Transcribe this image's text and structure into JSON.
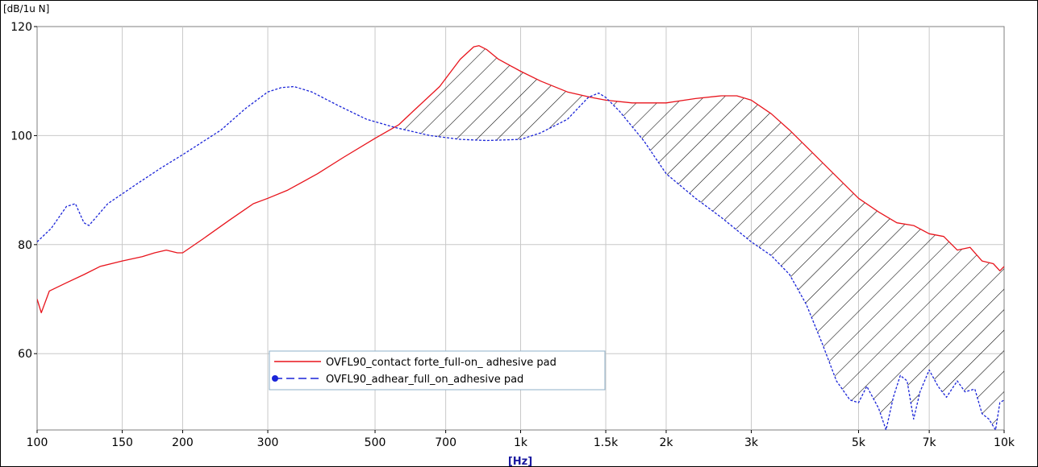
{
  "chart_data": {
    "type": "line",
    "title": "",
    "y_unit_label": "[dB/1u N]",
    "x_unit_label": "[Hz]",
    "x_scale": "log",
    "xlim": [
      100,
      10000
    ],
    "ylim": [
      46,
      120
    ],
    "grid": true,
    "legend_placement": "bottom-center",
    "x_ticks": [
      {
        "value": 100,
        "label": "100"
      },
      {
        "value": 150,
        "label": "150"
      },
      {
        "value": 200,
        "label": "200"
      },
      {
        "value": 300,
        "label": "300"
      },
      {
        "value": 500,
        "label": "500"
      },
      {
        "value": 700,
        "label": "700"
      },
      {
        "value": 1000,
        "label": "1k"
      },
      {
        "value": 1500,
        "label": "1.5k"
      },
      {
        "value": 2000,
        "label": "2k"
      },
      {
        "value": 3000,
        "label": "3k"
      },
      {
        "value": 5000,
        "label": "5k"
      },
      {
        "value": 7000,
        "label": "7k"
      },
      {
        "value": 10000,
        "label": "10k"
      }
    ],
    "y_ticks": [
      {
        "value": 60,
        "label": "60"
      },
      {
        "value": 80,
        "label": "80"
      },
      {
        "value": 100,
        "label": "100"
      },
      {
        "value": 120,
        "label": "120"
      }
    ],
    "hatched_region": "area between the two series where the red series is above the blue series",
    "series": [
      {
        "name": "OVFL90_contact forte_full-on_ adhesive pad",
        "color": "#e8141c",
        "style": "solid",
        "points": [
          [
            100,
            70
          ],
          [
            102,
            67.5
          ],
          [
            106,
            71.5
          ],
          [
            115,
            73
          ],
          [
            125,
            74.5
          ],
          [
            135,
            76
          ],
          [
            150,
            77
          ],
          [
            165,
            77.8
          ],
          [
            175,
            78.5
          ],
          [
            185,
            79
          ],
          [
            195,
            78.5
          ],
          [
            200,
            78.5
          ],
          [
            220,
            81
          ],
          [
            250,
            84.5
          ],
          [
            280,
            87.5
          ],
          [
            300,
            88.5
          ],
          [
            330,
            90
          ],
          [
            380,
            93
          ],
          [
            430,
            96
          ],
          [
            500,
            99.5
          ],
          [
            560,
            102
          ],
          [
            600,
            104.5
          ],
          [
            680,
            109
          ],
          [
            750,
            114
          ],
          [
            800,
            116.3
          ],
          [
            820,
            116.5
          ],
          [
            850,
            115.8
          ],
          [
            900,
            114
          ],
          [
            1000,
            111.8
          ],
          [
            1100,
            110
          ],
          [
            1250,
            108
          ],
          [
            1400,
            107
          ],
          [
            1500,
            106.5
          ],
          [
            1700,
            106
          ],
          [
            2000,
            106
          ],
          [
            2300,
            106.8
          ],
          [
            2600,
            107.3
          ],
          [
            2800,
            107.3
          ],
          [
            3000,
            106.5
          ],
          [
            3300,
            104
          ],
          [
            3600,
            101
          ],
          [
            4000,
            97
          ],
          [
            4500,
            92.5
          ],
          [
            5000,
            88.5
          ],
          [
            5500,
            86
          ],
          [
            6000,
            84
          ],
          [
            6500,
            83.5
          ],
          [
            7000,
            82
          ],
          [
            7500,
            81.5
          ],
          [
            8000,
            79
          ],
          [
            8500,
            79.5
          ],
          [
            9000,
            77
          ],
          [
            9500,
            76.5
          ],
          [
            9800,
            75.2
          ],
          [
            10000,
            76
          ]
        ]
      },
      {
        "name": "OVFL90_adhear_full_on_adhesive pad",
        "color": "#1a24d8",
        "style": "dashed",
        "marker": "circle",
        "points": [
          [
            100,
            80.5
          ],
          [
            107,
            83
          ],
          [
            115,
            87
          ],
          [
            120,
            87.5
          ],
          [
            125,
            84
          ],
          [
            128,
            83.5
          ],
          [
            140,
            87.5
          ],
          [
            160,
            91
          ],
          [
            180,
            94
          ],
          [
            200,
            96.5
          ],
          [
            240,
            101
          ],
          [
            270,
            105
          ],
          [
            300,
            108
          ],
          [
            320,
            108.8
          ],
          [
            340,
            109
          ],
          [
            370,
            108
          ],
          [
            420,
            105.5
          ],
          [
            480,
            103
          ],
          [
            550,
            101.5
          ],
          [
            650,
            100
          ],
          [
            750,
            99.3
          ],
          [
            850,
            99.1
          ],
          [
            1000,
            99.3
          ],
          [
            1100,
            100.5
          ],
          [
            1250,
            103
          ],
          [
            1380,
            107
          ],
          [
            1450,
            107.8
          ],
          [
            1500,
            107
          ],
          [
            1600,
            104.5
          ],
          [
            1800,
            99
          ],
          [
            2000,
            93
          ],
          [
            2300,
            88.5
          ],
          [
            2600,
            85
          ],
          [
            3000,
            80.5
          ],
          [
            3300,
            78
          ],
          [
            3600,
            74.5
          ],
          [
            3900,
            69
          ],
          [
            4200,
            62
          ],
          [
            4500,
            55
          ],
          [
            4800,
            51.5
          ],
          [
            5000,
            51
          ],
          [
            5200,
            54
          ],
          [
            5500,
            50
          ],
          [
            5700,
            46
          ],
          [
            5900,
            52
          ],
          [
            6100,
            56
          ],
          [
            6300,
            55
          ],
          [
            6500,
            48
          ],
          [
            6700,
            53
          ],
          [
            7000,
            57
          ],
          [
            7300,
            54
          ],
          [
            7600,
            52
          ],
          [
            8000,
            55
          ],
          [
            8300,
            53
          ],
          [
            8700,
            53.5
          ],
          [
            9000,
            49
          ],
          [
            9300,
            48
          ],
          [
            9600,
            46
          ],
          [
            9800,
            51
          ],
          [
            10000,
            51.5
          ]
        ]
      }
    ]
  }
}
